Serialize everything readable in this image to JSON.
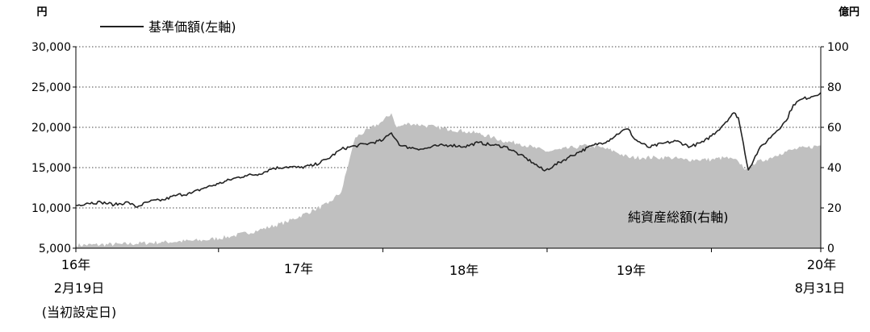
{
  "chart_data": {
    "type": "line+area",
    "left_unit": "円",
    "right_unit": "億円",
    "left_axis": {
      "ticks": [
        "5,000",
        "10,000",
        "15,000",
        "20,000",
        "25,000",
        "30,000"
      ],
      "ylim": [
        5000,
        30000
      ]
    },
    "right_axis": {
      "ticks": [
        "0",
        "20",
        "40",
        "60",
        "80",
        "100"
      ],
      "ylim": [
        0,
        100
      ]
    },
    "x_labels": {
      "start": [
        "16年",
        "2月19日",
        "(当初設定日)"
      ],
      "y17": "17年",
      "y18": "18年",
      "y19": "19年",
      "end": [
        "20年",
        "8月31日"
      ]
    },
    "x_range": [
      "2016-02-19",
      "2020-08-31"
    ],
    "grid": "horizontal dotted",
    "series": [
      {
        "name": "基準価額(左軸)",
        "type": "line",
        "axis": "left",
        "color": "#222222",
        "points": [
          [
            "2016-02-19",
            10300
          ],
          [
            "2016-03-15",
            10600
          ],
          [
            "2016-04-15",
            10700
          ],
          [
            "2016-05-15",
            10400
          ],
          [
            "2016-06-15",
            10700
          ],
          [
            "2016-07-01",
            10100
          ],
          [
            "2016-08-01",
            10800
          ],
          [
            "2016-09-01",
            11000
          ],
          [
            "2016-10-01",
            11600
          ],
          [
            "2016-11-01",
            11800
          ],
          [
            "2016-12-01",
            12500
          ],
          [
            "2017-01-01",
            13000
          ],
          [
            "2017-02-01",
            13600
          ],
          [
            "2017-03-01",
            14000
          ],
          [
            "2017-04-01",
            14200
          ],
          [
            "2017-05-01",
            14900
          ],
          [
            "2017-06-01",
            15100
          ],
          [
            "2017-07-01",
            15000
          ],
          [
            "2017-08-01",
            15300
          ],
          [
            "2017-09-01",
            16100
          ],
          [
            "2017-10-01",
            17300
          ],
          [
            "2017-11-01",
            17700
          ],
          [
            "2017-12-01",
            18000
          ],
          [
            "2018-01-01",
            18400
          ],
          [
            "2018-01-20",
            19300
          ],
          [
            "2018-02-10",
            17700
          ],
          [
            "2018-03-01",
            17500
          ],
          [
            "2018-04-01",
            17300
          ],
          [
            "2018-05-01",
            17700
          ],
          [
            "2018-06-01",
            17800
          ],
          [
            "2018-07-01",
            17600
          ],
          [
            "2018-08-01",
            18100
          ],
          [
            "2018-09-01",
            17800
          ],
          [
            "2018-10-01",
            17600
          ],
          [
            "2018-11-01",
            16600
          ],
          [
            "2018-12-01",
            15600
          ],
          [
            "2018-12-26",
            14600
          ],
          [
            "2019-01-15",
            15200
          ],
          [
            "2019-02-15",
            16200
          ],
          [
            "2019-03-15",
            17000
          ],
          [
            "2019-04-15",
            17800
          ],
          [
            "2019-05-15",
            18300
          ],
          [
            "2019-06-15",
            19500
          ],
          [
            "2019-06-30",
            19800
          ],
          [
            "2019-07-15",
            18500
          ],
          [
            "2019-08-15",
            17500
          ],
          [
            "2019-09-15",
            18000
          ],
          [
            "2019-10-15",
            18300
          ],
          [
            "2019-11-15",
            17600
          ],
          [
            "2019-12-15",
            18200
          ],
          [
            "2020-01-15",
            19600
          ],
          [
            "2020-02-20",
            21800
          ],
          [
            "2020-03-01",
            21200
          ],
          [
            "2020-03-23",
            14700
          ],
          [
            "2020-04-15",
            17200
          ],
          [
            "2020-05-15",
            19000
          ],
          [
            "2020-06-15",
            20800
          ],
          [
            "2020-07-01",
            22800
          ],
          [
            "2020-07-20",
            23500
          ],
          [
            "2020-08-10",
            23800
          ],
          [
            "2020-08-31",
            24300
          ]
        ]
      },
      {
        "name": "純資産総額(右軸)",
        "type": "area",
        "axis": "right",
        "color": "#c0c0c0",
        "points": [
          [
            "2016-02-19",
            1.5
          ],
          [
            "2016-06-01",
            2
          ],
          [
            "2016-09-01",
            3
          ],
          [
            "2016-12-01",
            4
          ],
          [
            "2017-02-01",
            6
          ],
          [
            "2017-04-01",
            9
          ],
          [
            "2017-06-01",
            13
          ],
          [
            "2017-08-01",
            19
          ],
          [
            "2017-09-01",
            22
          ],
          [
            "2017-10-01",
            28
          ],
          [
            "2017-10-20",
            45
          ],
          [
            "2017-11-01",
            55
          ],
          [
            "2017-12-01",
            59
          ],
          [
            "2018-01-01",
            63
          ],
          [
            "2018-01-20",
            67
          ],
          [
            "2018-02-01",
            60
          ],
          [
            "2018-03-01",
            62
          ],
          [
            "2018-04-01",
            61
          ],
          [
            "2018-05-01",
            60
          ],
          [
            "2018-06-01",
            59
          ],
          [
            "2018-07-01",
            58
          ],
          [
            "2018-08-01",
            57
          ],
          [
            "2018-09-01",
            55
          ],
          [
            "2018-10-01",
            53
          ],
          [
            "2018-11-01",
            52
          ],
          [
            "2018-12-01",
            50
          ],
          [
            "2019-01-01",
            48
          ],
          [
            "2019-02-01",
            49
          ],
          [
            "2019-03-01",
            50
          ],
          [
            "2019-04-01",
            51
          ],
          [
            "2019-05-01",
            50
          ],
          [
            "2019-06-01",
            48
          ],
          [
            "2019-07-01",
            45
          ],
          [
            "2019-08-01",
            45
          ],
          [
            "2019-09-01",
            45
          ],
          [
            "2019-10-01",
            45
          ],
          [
            "2019-11-01",
            44
          ],
          [
            "2019-12-01",
            44
          ],
          [
            "2020-01-01",
            44
          ],
          [
            "2020-02-01",
            45
          ],
          [
            "2020-03-01",
            43
          ],
          [
            "2020-03-23",
            38
          ],
          [
            "2020-04-01",
            42
          ],
          [
            "2020-05-01",
            44
          ],
          [
            "2020-06-01",
            47
          ],
          [
            "2020-07-01",
            49
          ],
          [
            "2020-08-01",
            50
          ],
          [
            "2020-08-31",
            51
          ]
        ]
      }
    ]
  }
}
